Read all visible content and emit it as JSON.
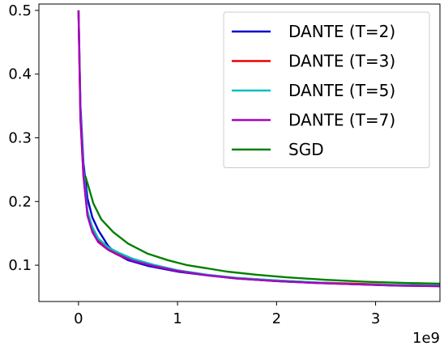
{
  "chart_data": {
    "type": "line",
    "x_multiplier_label": "1e9",
    "xlim": [
      -0.4,
      3.65
    ],
    "ylim": [
      0.043,
      0.51
    ],
    "xticks": [
      {
        "value": 0,
        "label": "0"
      },
      {
        "value": 1,
        "label": "1"
      },
      {
        "value": 2,
        "label": "2"
      },
      {
        "value": 3,
        "label": "3"
      }
    ],
    "yticks": [
      {
        "value": 0.1,
        "label": "0.1"
      },
      {
        "value": 0.2,
        "label": "0.2"
      },
      {
        "value": 0.3,
        "label": "0.3"
      },
      {
        "value": 0.4,
        "label": "0.4"
      },
      {
        "value": 0.5,
        "label": "0.5"
      }
    ],
    "grid": false,
    "legend_position": "top-right",
    "series": [
      {
        "name": "DANTE (T=2)",
        "color": "#0000cc",
        "style": "solid",
        "points": [
          [
            0.0,
            0.5
          ],
          [
            0.02,
            0.35
          ],
          [
            0.05,
            0.26
          ],
          [
            0.09,
            0.205
          ],
          [
            0.14,
            0.175
          ],
          [
            0.2,
            0.155
          ],
          [
            0.28,
            0.135
          ],
          [
            0.3,
            0.13
          ],
          [
            0.38,
            0.118
          ],
          [
            0.5,
            0.108
          ],
          [
            0.7,
            0.099
          ],
          [
            1.0,
            0.09
          ],
          [
            1.3,
            0.084
          ],
          [
            1.6,
            0.079
          ],
          [
            2.0,
            0.075
          ],
          [
            2.4,
            0.072
          ],
          [
            2.8,
            0.07
          ],
          [
            3.2,
            0.068
          ],
          [
            3.65,
            0.067
          ]
        ]
      },
      {
        "name": "DANTE (T=3)",
        "color": "#ee0000",
        "style": "solid",
        "points": [
          [
            0.0,
            0.5
          ],
          [
            0.02,
            0.33
          ],
          [
            0.05,
            0.24
          ],
          [
            0.09,
            0.18
          ],
          [
            0.14,
            0.155
          ],
          [
            0.2,
            0.138
          ],
          [
            0.3,
            0.126
          ],
          [
            0.4,
            0.118
          ],
          [
            0.55,
            0.108
          ],
          [
            0.75,
            0.1
          ],
          [
            1.0,
            0.092
          ],
          [
            1.3,
            0.085
          ],
          [
            1.6,
            0.08
          ],
          [
            2.0,
            0.076
          ],
          [
            2.4,
            0.073
          ],
          [
            2.8,
            0.071
          ],
          [
            3.2,
            0.069
          ],
          [
            3.65,
            0.068
          ]
        ]
      },
      {
        "name": "DANTE (T=5)",
        "color": "#00bfbf",
        "style": "solid",
        "points": [
          [
            0.0,
            0.5
          ],
          [
            0.02,
            0.34
          ],
          [
            0.05,
            0.25
          ],
          [
            0.09,
            0.185
          ],
          [
            0.14,
            0.16
          ],
          [
            0.2,
            0.142
          ],
          [
            0.3,
            0.128
          ],
          [
            0.4,
            0.12
          ],
          [
            0.55,
            0.11
          ],
          [
            0.75,
            0.101
          ],
          [
            1.0,
            0.092
          ],
          [
            1.3,
            0.085
          ],
          [
            1.6,
            0.08
          ],
          [
            2.0,
            0.076
          ],
          [
            2.4,
            0.073
          ],
          [
            2.8,
            0.07
          ],
          [
            3.2,
            0.069
          ],
          [
            3.65,
            0.068
          ]
        ]
      },
      {
        "name": "DANTE (T=7)",
        "color": "#aa00bb",
        "style": "solid",
        "points": [
          [
            0.0,
            0.5
          ],
          [
            0.02,
            0.33
          ],
          [
            0.05,
            0.24
          ],
          [
            0.09,
            0.178
          ],
          [
            0.14,
            0.152
          ],
          [
            0.2,
            0.136
          ],
          [
            0.3,
            0.124
          ],
          [
            0.4,
            0.116
          ],
          [
            0.55,
            0.107
          ],
          [
            0.75,
            0.099
          ],
          [
            1.0,
            0.091
          ],
          [
            1.3,
            0.084
          ],
          [
            1.6,
            0.079
          ],
          [
            2.0,
            0.075
          ],
          [
            2.4,
            0.072
          ],
          [
            2.8,
            0.07
          ],
          [
            3.2,
            0.068
          ],
          [
            3.65,
            0.067
          ]
        ]
      },
      {
        "name": "SGD",
        "color": "#008000",
        "style": "solid",
        "points": [
          [
            0.07,
            0.24
          ],
          [
            0.15,
            0.197
          ],
          [
            0.23,
            0.172
          ],
          [
            0.35,
            0.152
          ],
          [
            0.5,
            0.134
          ],
          [
            0.7,
            0.118
          ],
          [
            0.9,
            0.108
          ],
          [
            1.1,
            0.1
          ],
          [
            1.3,
            0.095
          ],
          [
            1.5,
            0.09
          ],
          [
            1.8,
            0.085
          ],
          [
            2.1,
            0.081
          ],
          [
            2.5,
            0.077
          ],
          [
            2.9,
            0.074
          ],
          [
            3.3,
            0.072
          ],
          [
            3.65,
            0.071
          ]
        ]
      }
    ]
  }
}
